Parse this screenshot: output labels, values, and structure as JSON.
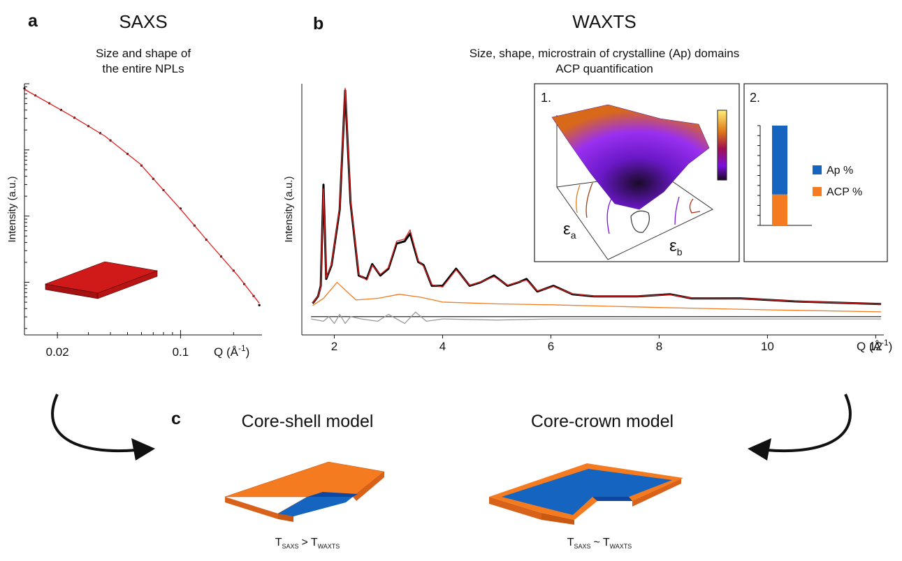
{
  "chart_data": [
    {
      "type": "line",
      "panel_label": "a",
      "title": "SAXS",
      "subtitle": [
        "Size and shape of",
        "the entire NPLs"
      ],
      "y_label": "Intensity (a.u.)",
      "x_label": {
        "text": "Q (Å",
        "sup": "-1",
        "end": ")"
      },
      "xscale": "log",
      "yscale": "log",
      "xlim": [
        0.013,
        0.29
      ],
      "ylim": [
        1.6,
        10000
      ],
      "xticks": [
        0.02,
        0.1
      ],
      "series": [
        {
          "style": "points",
          "color": "#000000",
          "x": [
            0.013,
            0.015,
            0.018,
            0.021,
            0.025,
            0.03,
            0.035,
            0.04,
            0.05,
            0.06,
            0.07,
            0.08,
            0.1,
            0.12,
            0.14,
            0.17,
            0.2,
            0.23,
            0.26,
            0.28
          ],
          "values": [
            8500,
            6650,
            5060,
            4010,
            3060,
            2290,
            1790,
            1390,
            869,
            580,
            366,
            247,
            130,
            72,
            44,
            24.5,
            15,
            9.4,
            6.2,
            4.5
          ]
        },
        {
          "style": "line",
          "color": "#e02020",
          "x": [
            0.013,
            0.0236,
            0.0372,
            0.0588,
            0.1,
            0.147,
            0.211,
            0.28
          ],
          "values": [
            8240,
            3360,
            1620,
            617,
            127,
            38,
            12.7,
            4.8
          ]
        }
      ]
    },
    {
      "type": "line",
      "panel_label": "b",
      "title": "WAXTS",
      "subtitle": [
        "Size, shape, microstrain of crystalline (Ap) domains",
        "ACP quantification"
      ],
      "y_label": "Intensity (a.u.)",
      "x_label": {
        "text": "Q (Å",
        "sup": "-1",
        "end": ")"
      },
      "xlim": [
        1.4,
        12.15
      ],
      "ylim": [
        -8,
        102
      ],
      "xticks": [
        2,
        4,
        6,
        8,
        10,
        12
      ],
      "series": [
        {
          "style": "thick",
          "color": "#000000",
          "x": [
            1.6,
            1.7,
            1.75,
            1.8,
            1.85,
            1.95,
            2.1,
            2.2,
            2.3,
            2.45,
            2.6,
            2.7,
            2.85,
            3.0,
            3.15,
            3.3,
            3.4,
            3.55,
            3.65,
            3.8,
            4.0,
            4.25,
            4.5,
            4.7,
            4.95,
            5.2,
            5.4,
            5.55,
            5.75,
            6.05,
            6.4,
            6.8,
            7.3,
            7.6,
            8.2,
            8.6,
            9.5,
            10.5,
            12.1
          ],
          "values": [
            5.8,
            8.9,
            13.5,
            57.8,
            16.5,
            22.6,
            47,
            99,
            50,
            18,
            16.5,
            23,
            18,
            21,
            32,
            33,
            36.4,
            24,
            22.6,
            13.5,
            13.5,
            21,
            13.5,
            15,
            18,
            13.5,
            15,
            16.5,
            11,
            13.5,
            9.8,
            8.9,
            8.9,
            8.9,
            9.8,
            8,
            8,
            6.7,
            5.5
          ]
        },
        {
          "style": "line",
          "color": "#e02020",
          "x": [
            1.6,
            1.7,
            1.75,
            1.8,
            1.85,
            1.95,
            2.1,
            2.2,
            2.3,
            2.45,
            2.6,
            2.7,
            2.85,
            3.0,
            3.15,
            3.3,
            3.4,
            3.55,
            3.65,
            3.8,
            4.0,
            4.25,
            4.5,
            4.7,
            4.95,
            5.2,
            5.4,
            5.55,
            5.75,
            6.05,
            6.4,
            6.8,
            7.3,
            7.6,
            8.2,
            8.6,
            9.5,
            10.5,
            12.1
          ],
          "values": [
            6,
            9,
            13,
            56,
            17,
            23,
            48,
            100,
            51,
            18.5,
            16,
            22.5,
            18.5,
            21.5,
            33,
            34,
            38,
            24.5,
            22,
            14,
            13,
            20.5,
            13.8,
            15.2,
            17.5,
            13.8,
            15.2,
            16,
            11.3,
            13.2,
            10,
            9,
            9,
            9,
            9.6,
            8.1,
            8,
            6.8,
            5.5
          ]
        },
        {
          "style": "line",
          "color": "#f47b20",
          "x": [
            1.6,
            1.8,
            2.05,
            2.4,
            2.8,
            3.2,
            3.6,
            4.0,
            5.0,
            6.0,
            8.0,
            10.0,
            12.1
          ],
          "values": [
            4.9,
            8,
            15,
            7.3,
            8,
            9.8,
            8.5,
            6.4,
            5.6,
            5.2,
            4,
            3,
            2.1
          ]
        },
        {
          "style": "line",
          "color": "#999999",
          "x": [
            1.57,
            1.8,
            1.9,
            2.0,
            2.1,
            2.2,
            2.3,
            2.5,
            2.8,
            3.0,
            3.3,
            3.5,
            3.7,
            4.0,
            5.0,
            6.0,
            8.0,
            10.0,
            12.1
          ],
          "values": [
            -1,
            -2,
            0,
            -3,
            1,
            -3,
            0,
            -1,
            -2,
            1,
            -3,
            2,
            -2,
            -1,
            -1.5,
            -1,
            -1,
            -1,
            -1
          ]
        }
      ]
    },
    {
      "type": "stacked_bar",
      "panel_label": "2.",
      "ylim": [
        0,
        100
      ],
      "legend": "right",
      "series": [
        {
          "name": "Ap %",
          "color": "#1565c0",
          "values": [
            69
          ]
        },
        {
          "name": "ACP %",
          "color": "#f47b20",
          "values": [
            31
          ]
        }
      ]
    }
  ],
  "surface_inset": {
    "label": "1.",
    "axes": [
      {
        "symbol": "ε",
        "sub": "a"
      },
      {
        "symbol": "ε",
        "sub": "b"
      }
    ]
  },
  "panel_c": {
    "label": "c",
    "models": [
      {
        "title": "Core-shell model",
        "relation": {
          "left": "T",
          "left_sub": "SAXS",
          "op": ">",
          "right": "T",
          "right_sub": "WAXTS"
        }
      },
      {
        "title": "Core-crown model",
        "relation": {
          "left": "T",
          "left_sub": "SAXS",
          "op": "~",
          "right": "T",
          "right_sub": "WAXTS"
        }
      }
    ]
  }
}
